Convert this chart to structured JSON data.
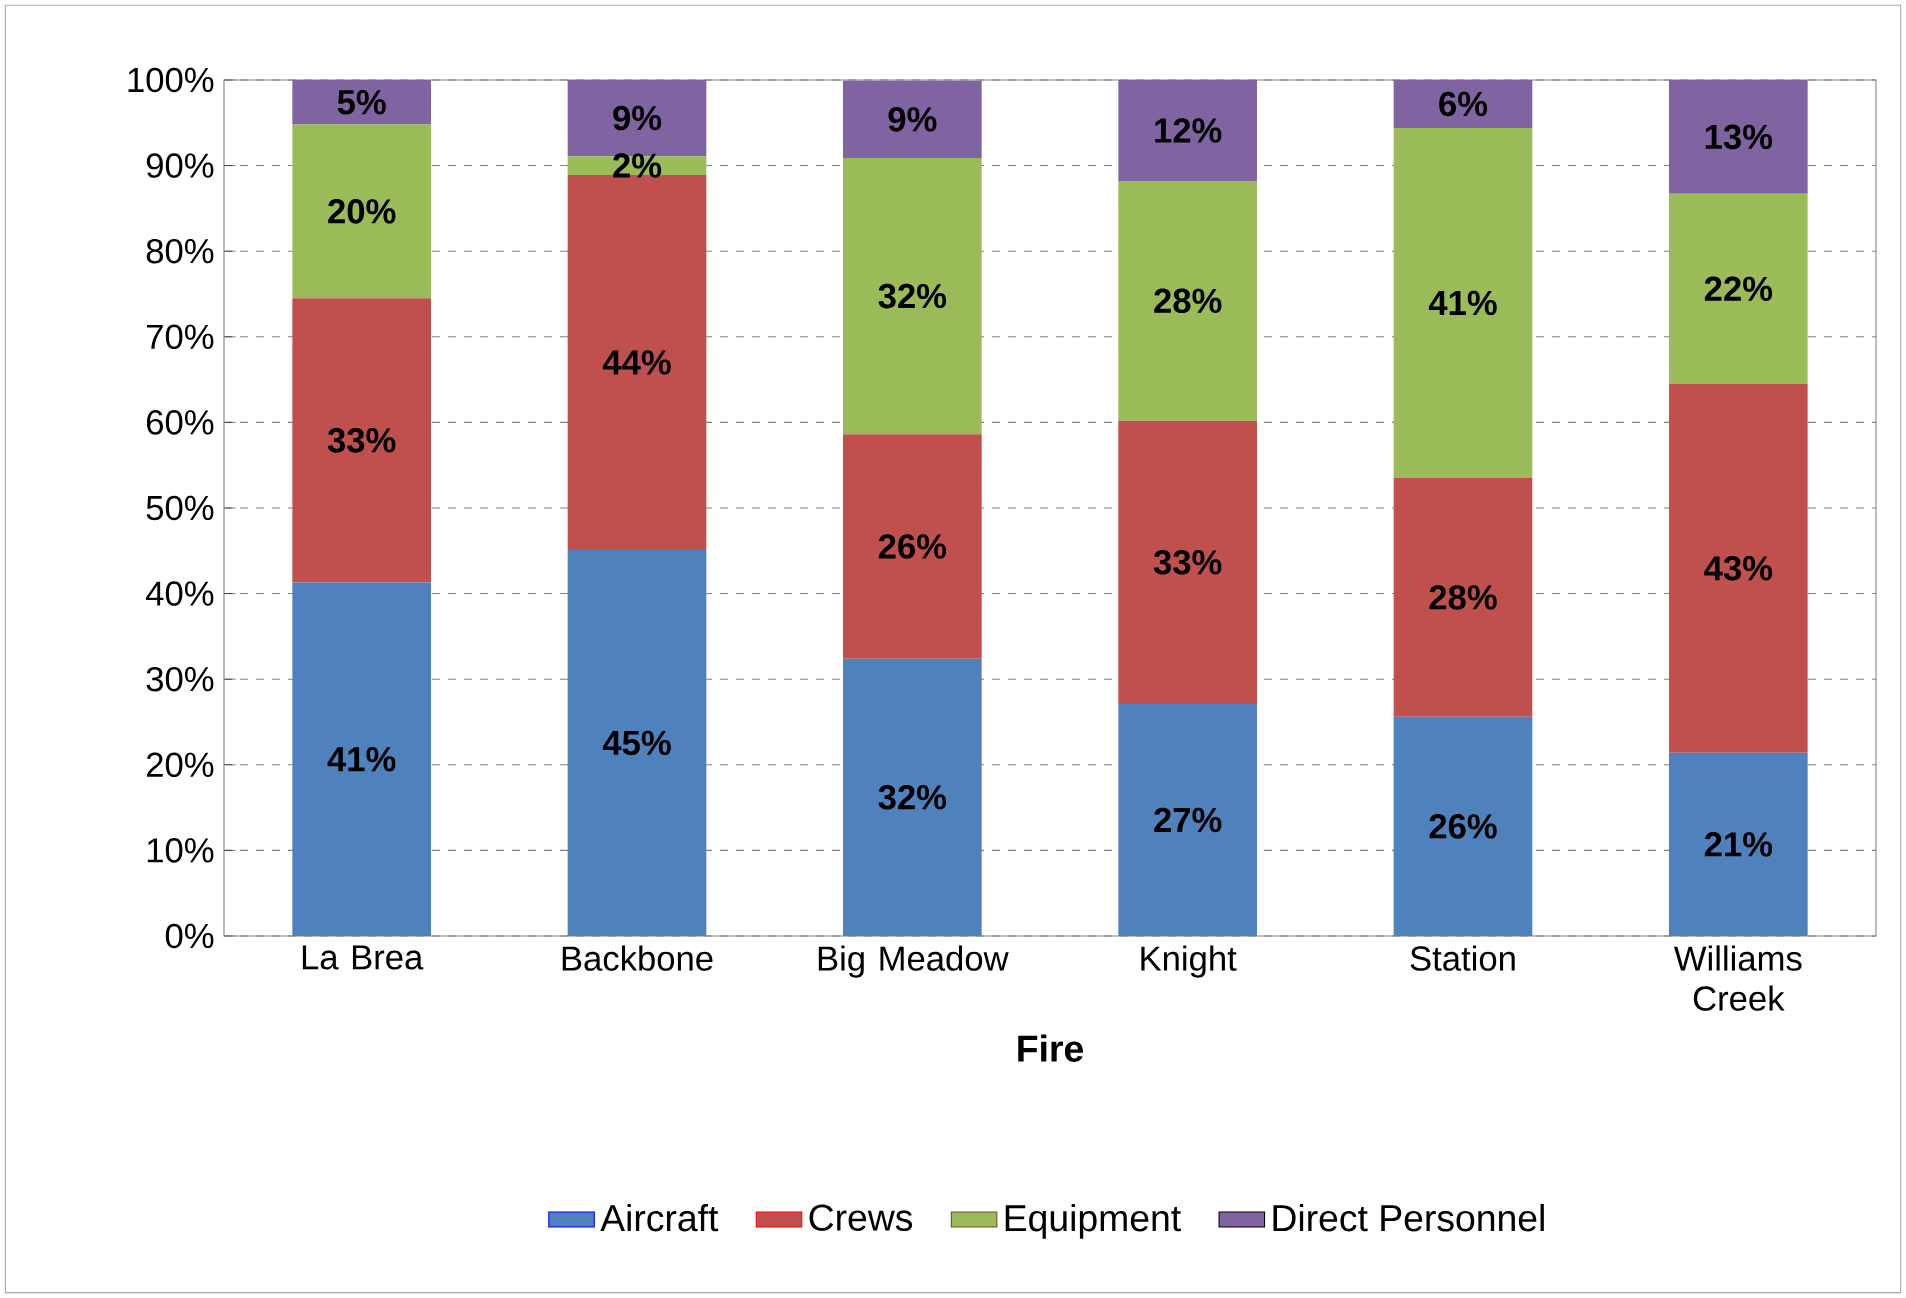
{
  "chart_data": {
    "type": "bar",
    "stacked": true,
    "xlabel": "Fire",
    "categories": [
      "La Brea",
      "Backbone",
      "Big Meadow",
      "Knight",
      "Station",
      "Williams Creek"
    ],
    "series": [
      {
        "name": "Aircraft",
        "color": "#4f81bd",
        "values": [
          41.3,
          45.1,
          32.4,
          27.1,
          25.6,
          21.4
        ],
        "value_labels": [
          "41%",
          "45%",
          "32%",
          "27%",
          "26%",
          "21%"
        ]
      },
      {
        "name": "Crews",
        "color": "#c0504d",
        "values": [
          33.2,
          43.8,
          26.2,
          33.1,
          27.9,
          43.1
        ],
        "value_labels": [
          "33%",
          "44%",
          "26%",
          "33%",
          "28%",
          "43%"
        ]
      },
      {
        "name": "Equipment",
        "color": "#9bbb59",
        "values": [
          20.3,
          2.2,
          32.3,
          28.0,
          40.9,
          22.2
        ],
        "value_labels": [
          "20%",
          "2%",
          "32%",
          "28%",
          "41%",
          "22%"
        ]
      },
      {
        "name": "Direct Personnel",
        "color": "#8064a2",
        "values": [
          5.2,
          8.9,
          9.0,
          11.8,
          5.6,
          13.3
        ],
        "value_labels": [
          "5%",
          "9%",
          "9%",
          "12%",
          "6%",
          "13%"
        ]
      }
    ],
    "ylim": [
      0,
      100
    ],
    "yticks": [
      {
        "value": 0,
        "label": "0%"
      },
      {
        "value": 10,
        "label": "10%"
      },
      {
        "value": 20,
        "label": "20%"
      },
      {
        "value": 30,
        "label": "30%"
      },
      {
        "value": 40,
        "label": "40%"
      },
      {
        "value": 50,
        "label": "50%"
      },
      {
        "value": 60,
        "label": "60%"
      },
      {
        "value": 70,
        "label": "70%"
      },
      {
        "value": 80,
        "label": "80%"
      },
      {
        "value": 90,
        "label": "90%"
      },
      {
        "value": 100,
        "label": "100%"
      }
    ],
    "grid": "y",
    "legend": "bottom"
  }
}
